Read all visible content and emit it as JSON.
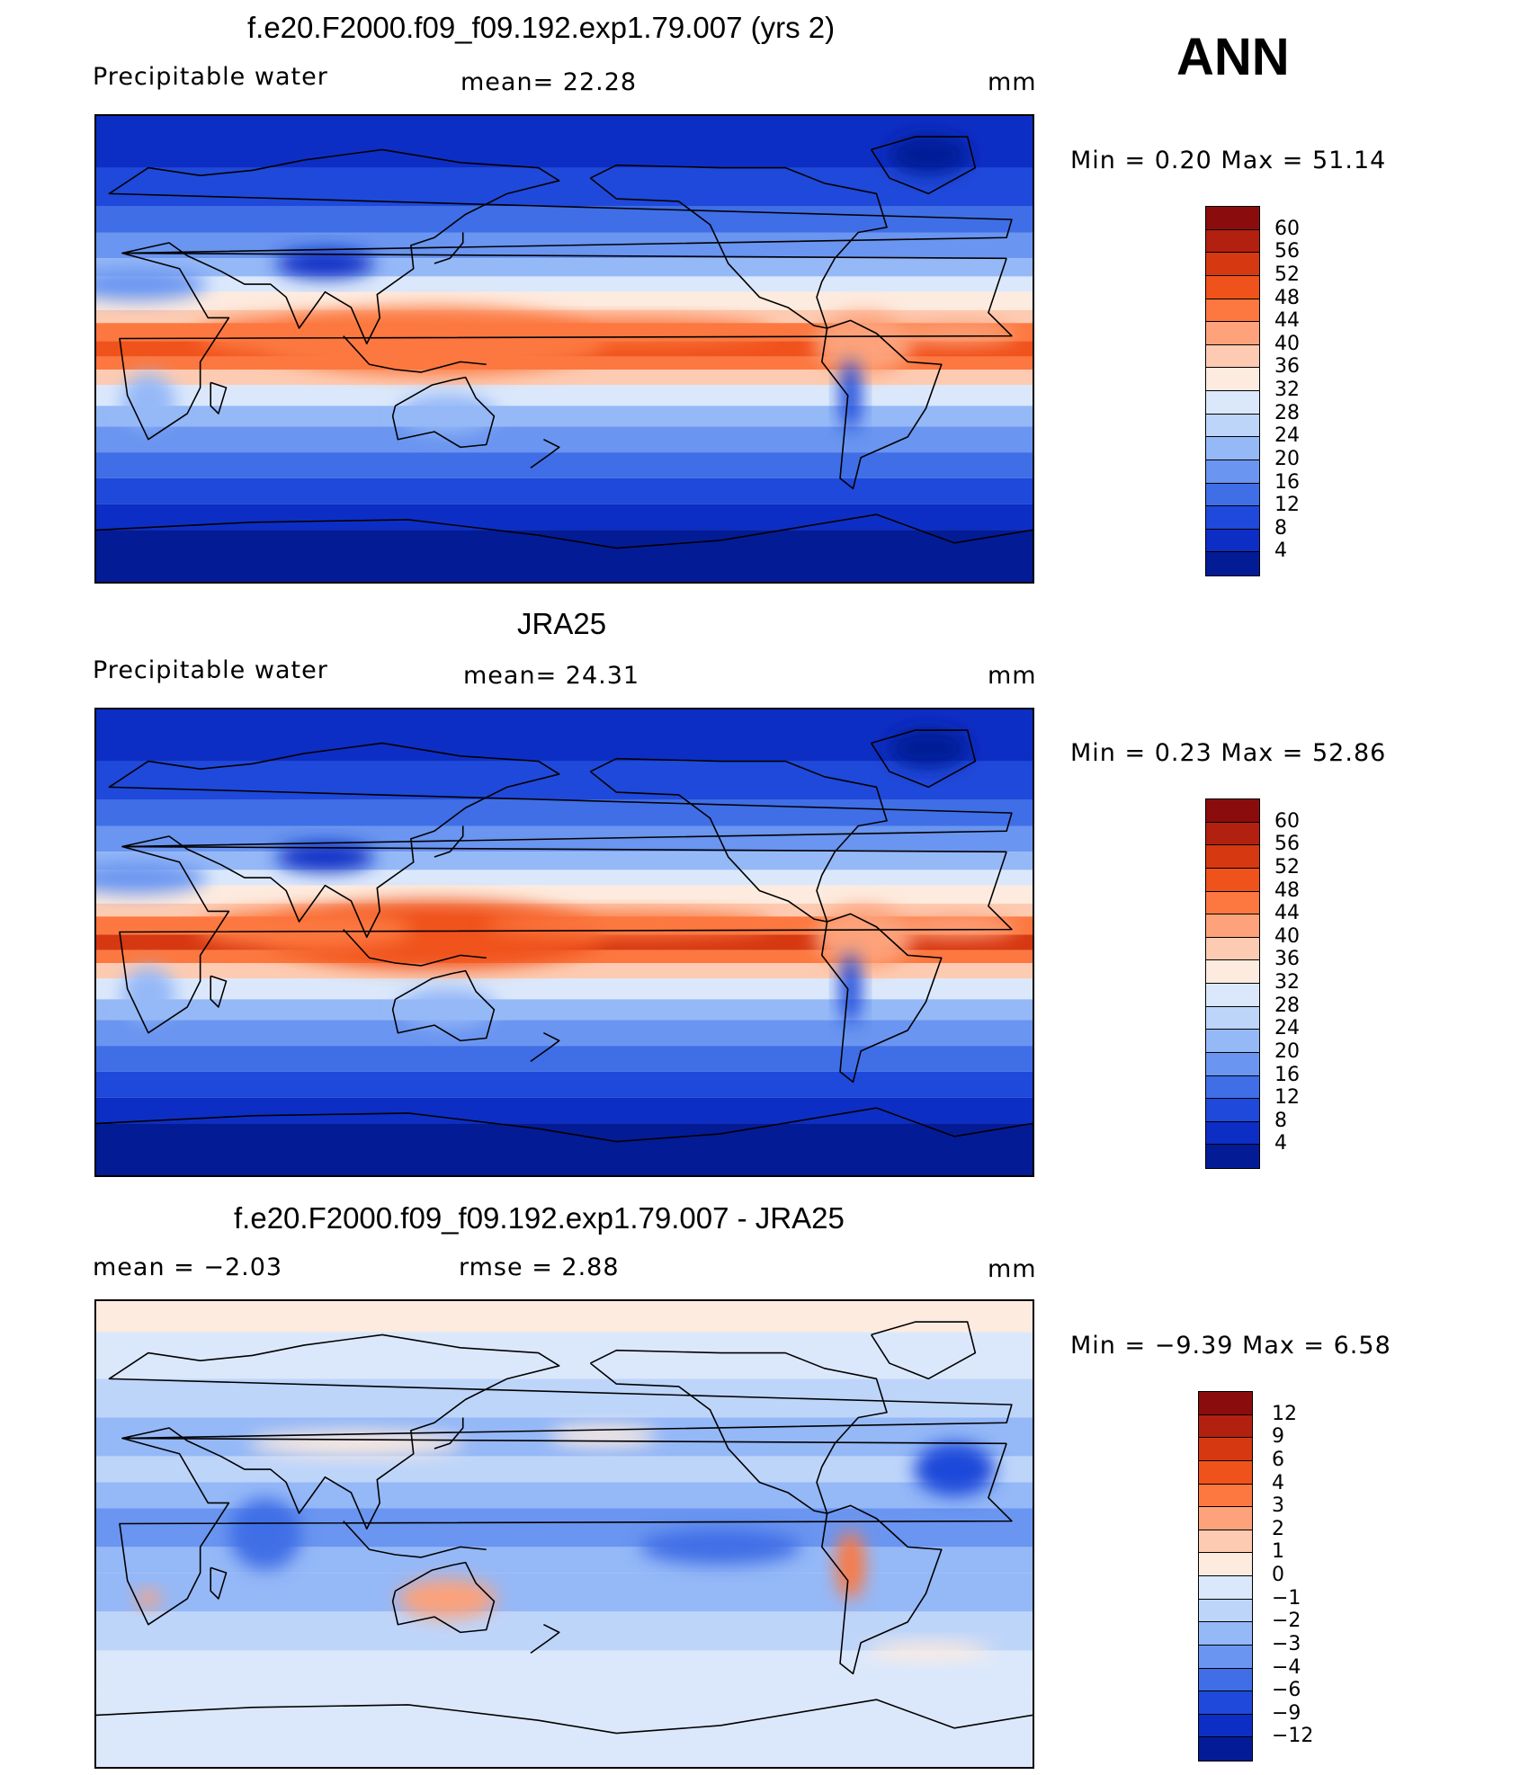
{
  "season": "ANN",
  "panels": [
    {
      "id": "model",
      "title": "f.e20.F2000.f09_f09.192.exp1.79.007 (yrs 2)",
      "left_label": "Precipitable water",
      "center_label": "mean=   22.28",
      "units": "mm",
      "minmax": "Min =    0.20  Max =   51.14",
      "colorbar_labels": [
        "60",
        "56",
        "52",
        "48",
        "44",
        "40",
        "36",
        "32",
        "28",
        "24",
        "20",
        "16",
        "12",
        "8",
        "4"
      ]
    },
    {
      "id": "obs",
      "title": "JRA25",
      "left_label": "Precipitable water",
      "center_label": "mean=   24.31",
      "units": "mm",
      "minmax": "Min =    0.23  Max =   52.86",
      "colorbar_labels": [
        "60",
        "56",
        "52",
        "48",
        "44",
        "40",
        "36",
        "32",
        "28",
        "24",
        "20",
        "16",
        "12",
        "8",
        "4"
      ]
    },
    {
      "id": "diff",
      "title": "f.e20.F2000.f09_f09.192.exp1.79.007 - JRA25",
      "left_label": "mean =   −2.03",
      "center_label": "rmse =    2.88",
      "units": "mm",
      "minmax": "Min =  −9.39  Max =    6.58",
      "colorbar_labels": [
        "12",
        "9",
        "6",
        "4",
        "3",
        "2",
        "1",
        "0",
        "−1",
        "−2",
        "−3",
        "−4",
        "−6",
        "−9",
        "−12"
      ]
    }
  ],
  "colors": {
    "abs_scale": [
      "#8b0c0c",
      "#b2200f",
      "#d63812",
      "#f0521c",
      "#fc7840",
      "#fda27a",
      "#fdcbb2",
      "#fdebdf",
      "#dbe8fb",
      "#bed5fa",
      "#95b8f7",
      "#6a95f0",
      "#3f6ee6",
      "#1f49da",
      "#0d2ec4",
      "#041b96"
    ],
    "diff_scale": [
      "#8b0c0c",
      "#b2200f",
      "#d63812",
      "#f0521c",
      "#fc7840",
      "#fda27a",
      "#fdcbb2",
      "#fdebdf",
      "#dbe8fb",
      "#bed5fa",
      "#95b8f7",
      "#6a95f0",
      "#3f6ee6",
      "#1f49da",
      "#0d2ec4",
      "#041b96"
    ],
    "coastline": "#000000"
  }
}
